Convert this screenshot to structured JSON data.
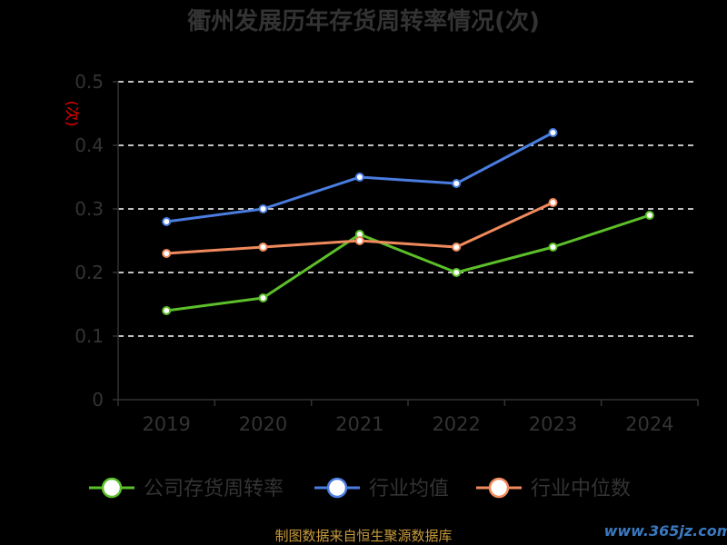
{
  "chart_data": {
    "type": "line",
    "title": "衢州发展历年存货周转率情况(次)",
    "ylabel": "(次)",
    "categories": [
      "2019",
      "2020",
      "2021",
      "2022",
      "2023",
      "2024"
    ],
    "ylim": [
      0,
      0.5
    ],
    "yticks": [
      "0",
      "0.1",
      "0.2",
      "0.3",
      "0.4",
      "0.5"
    ],
    "grid": true,
    "legend_position": "bottom",
    "series": [
      {
        "name": "公司存货周转率",
        "color": "#5cbf2a",
        "values": [
          0.14,
          0.16,
          0.26,
          0.2,
          0.24,
          0.29
        ]
      },
      {
        "name": "行业均值",
        "color": "#4a7de0",
        "values": [
          0.28,
          0.3,
          0.35,
          0.34,
          0.42,
          null
        ]
      },
      {
        "name": "行业中位数",
        "color": "#f08a5d",
        "values": [
          0.23,
          0.24,
          0.25,
          0.24,
          0.31,
          null
        ]
      }
    ]
  },
  "source_note": "制图数据来自恒生聚源数据库",
  "watermark": "www.365jz.com"
}
